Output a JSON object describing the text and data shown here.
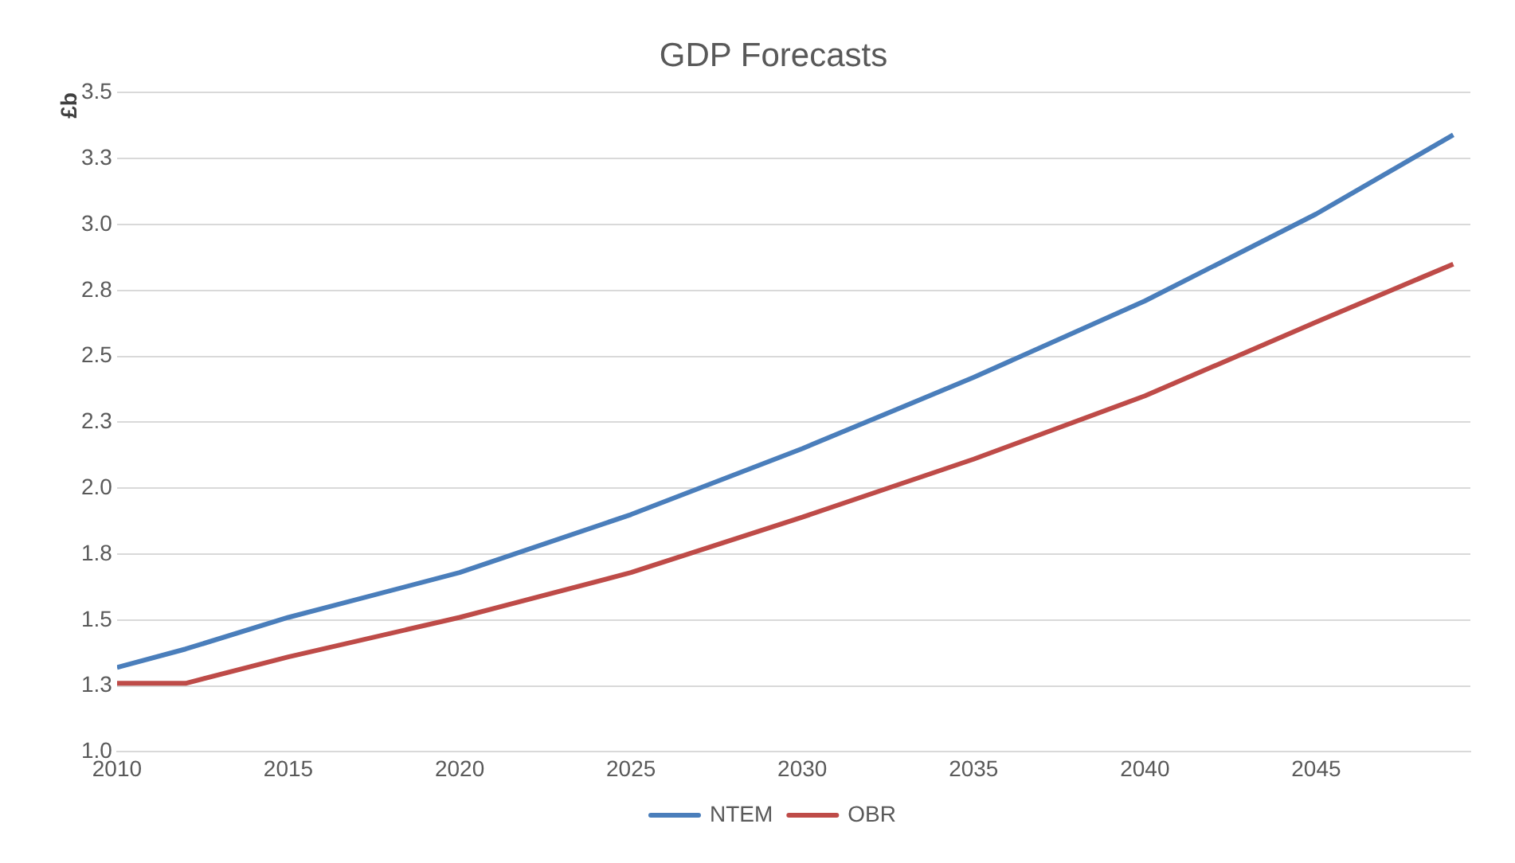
{
  "chart_data": {
    "type": "line",
    "title": "GDP Forecasts",
    "ylabel": "£b",
    "x": [
      2010,
      2012,
      2015,
      2020,
      2025,
      2030,
      2035,
      2040,
      2045,
      2049
    ],
    "series": [
      {
        "name": "NTEM",
        "color": "#4a7ebb",
        "values": [
          1.32,
          1.39,
          1.51,
          1.68,
          1.9,
          2.15,
          2.42,
          2.71,
          3.04,
          3.34
        ]
      },
      {
        "name": "OBR",
        "color": "#be4b48",
        "values": [
          1.26,
          1.26,
          1.36,
          1.51,
          1.68,
          1.89,
          2.11,
          2.35,
          2.63,
          2.85
        ]
      }
    ],
    "xlim": [
      2010,
      2049.5
    ],
    "xticks": [
      2010,
      2015,
      2020,
      2025,
      2030,
      2035,
      2040,
      2045
    ],
    "ylim": [
      1,
      3.5
    ],
    "yticks": [
      {
        "value": 1,
        "label": "1.0"
      },
      {
        "value": 1.25,
        "label": "1.3"
      },
      {
        "value": 1.5,
        "label": "1.5"
      },
      {
        "value": 1.75,
        "label": "1.8"
      },
      {
        "value": 2,
        "label": "2.0"
      },
      {
        "value": 2.25,
        "label": "2.3"
      },
      {
        "value": 2.5,
        "label": "2.5"
      },
      {
        "value": 2.75,
        "label": "2.8"
      },
      {
        "value": 3,
        "label": "3.0"
      },
      {
        "value": 3.25,
        "label": "3.3"
      },
      {
        "value": 3.5,
        "label": "3.5"
      }
    ],
    "grid": "y",
    "legend": "bottom",
    "marker": "none"
  }
}
